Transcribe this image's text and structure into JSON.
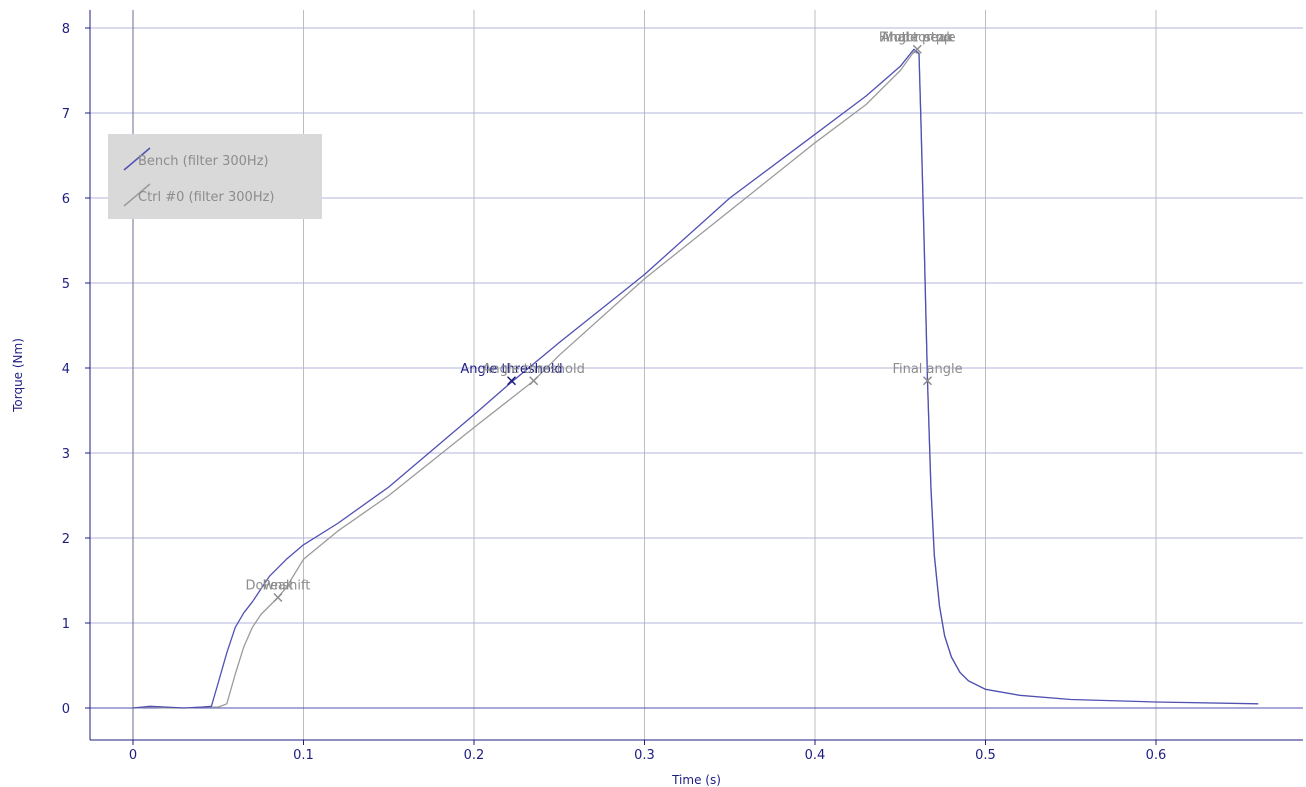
{
  "chart_data": {
    "type": "line",
    "xlabel": "Time (s)",
    "ylabel": "Torque (Nm)",
    "xlim": [
      -0.025,
      0.68
    ],
    "ylim": [
      -0.35,
      8.2
    ],
    "x_ticks": [
      0,
      0.1,
      0.2,
      0.3,
      0.4,
      0.5,
      0.6
    ],
    "y_ticks": [
      0,
      1,
      2,
      3,
      4,
      5,
      6,
      7,
      8
    ],
    "grid": true,
    "legend_position": "top-left",
    "series": [
      {
        "name": "Bench (filter 300Hz)",
        "color": "#5050b4",
        "x": [
          0,
          0.01,
          0.02,
          0.03,
          0.04,
          0.046,
          0.05,
          0.055,
          0.06,
          0.065,
          0.07,
          0.075,
          0.08,
          0.085,
          0.09,
          0.1,
          0.12,
          0.15,
          0.2,
          0.22,
          0.25,
          0.3,
          0.35,
          0.4,
          0.43,
          0.45,
          0.458,
          0.461,
          0.462,
          0.464,
          0.466,
          0.468,
          0.47,
          0.473,
          0.476,
          0.48,
          0.485,
          0.49,
          0.5,
          0.52,
          0.55,
          0.6,
          0.66
        ],
        "y": [
          0,
          0.02,
          0.01,
          0.0,
          0.01,
          0.02,
          0.3,
          0.65,
          0.95,
          1.12,
          1.25,
          1.4,
          1.55,
          1.65,
          1.75,
          1.92,
          2.17,
          2.6,
          3.45,
          3.8,
          4.3,
          5.1,
          6.0,
          6.75,
          7.2,
          7.55,
          7.75,
          7.7,
          7.0,
          5.5,
          3.85,
          2.6,
          1.8,
          1.2,
          0.85,
          0.6,
          0.42,
          0.32,
          0.22,
          0.15,
          0.1,
          0.07,
          0.05
        ]
      },
      {
        "name": "Ctrl #0 (filter 300Hz)",
        "color": "#9b9b9b",
        "x": [
          0,
          0.01,
          0.02,
          0.03,
          0.04,
          0.05,
          0.055,
          0.06,
          0.065,
          0.07,
          0.075,
          0.08,
          0.085,
          0.09,
          0.1,
          0.12,
          0.15,
          0.2,
          0.235,
          0.25,
          0.3,
          0.35,
          0.4,
          0.43,
          0.45,
          0.458,
          0.461,
          0.462,
          0.464,
          0.466,
          0.468,
          0.47,
          0.473,
          0.476,
          0.48,
          0.485,
          0.49,
          0.5
        ],
        "y": [
          0,
          0.01,
          0.0,
          0.0,
          0.01,
          0.01,
          0.05,
          0.4,
          0.72,
          0.95,
          1.1,
          1.2,
          1.3,
          1.42,
          1.75,
          2.08,
          2.5,
          3.3,
          3.85,
          4.15,
          5.05,
          5.85,
          6.65,
          7.1,
          7.5,
          7.72,
          7.7,
          7.0,
          5.5,
          3.85,
          2.6,
          1.8,
          1.2,
          0.85,
          0.6,
          0.42,
          0.32,
          0.22
        ]
      }
    ],
    "annotations": [
      {
        "label": "Downshift",
        "x": 0.085,
        "y": 1.3,
        "color": "#8c8c8c"
      },
      {
        "label": "Peak",
        "x": 0.085,
        "y": 1.3,
        "color": "#8c8c8c"
      },
      {
        "label": "Angle threshold",
        "x": 0.222,
        "y": 3.85,
        "color": "#1e1e82"
      },
      {
        "label": "Angle threshold",
        "x": 0.235,
        "y": 3.85,
        "color": "#8c8c8c"
      },
      {
        "label": "Motor stop",
        "x": 0.46,
        "y": 7.75,
        "color": "#8c8c8c"
      },
      {
        "label": "Angle peak",
        "x": 0.46,
        "y": 7.75,
        "color": "#8c8c8c"
      },
      {
        "label": "Final torque",
        "x": 0.46,
        "y": 7.75,
        "color": "#8c8c8c"
      },
      {
        "label": "Final angle",
        "x": 0.466,
        "y": 3.85,
        "color": "#8c8c8c"
      }
    ]
  }
}
